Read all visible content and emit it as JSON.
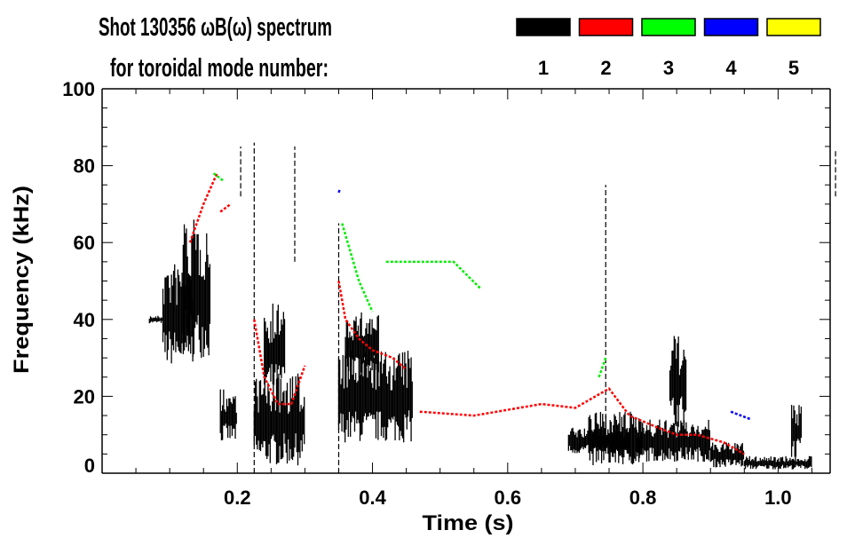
{
  "chart_data": {
    "type": "heatmap",
    "title": "Shot 130356 ωB(ω) spectrum",
    "subtitle": "for toroidal mode number:",
    "xlabel": "Time (s)",
    "ylabel": "Frequency (kHz)",
    "xlim": [
      0.0,
      1.077
    ],
    "ylim": [
      0,
      100
    ],
    "xticks": [
      "0.2",
      "0.4",
      "0.6",
      "0.8",
      "1.0"
    ],
    "xtick_values": [
      0.2,
      0.4,
      0.6,
      0.8,
      1.0
    ],
    "yticks": [
      "0",
      "20",
      "40",
      "60",
      "80",
      "100"
    ],
    "ytick_values": [
      0,
      20,
      40,
      60,
      80,
      100
    ],
    "legend": [
      {
        "mode": "1",
        "color": "#000000"
      },
      {
        "mode": "2",
        "color": "#ff0000"
      },
      {
        "mode": "3",
        "color": "#00ff00"
      },
      {
        "mode": "4",
        "color": "#0000ff"
      },
      {
        "mode": "5",
        "color": "#ffff00"
      }
    ],
    "mode1_regions": [
      {
        "t": [
          0.07,
          0.09
        ],
        "f": [
          39,
          41
        ]
      },
      {
        "t": [
          0.09,
          0.135
        ],
        "f": [
          28,
          55
        ]
      },
      {
        "t": [
          0.12,
          0.16
        ],
        "f": [
          30,
          66
        ]
      },
      {
        "t": [
          0.175,
          0.2
        ],
        "f": [
          8,
          22
        ]
      },
      {
        "t": [
          0.225,
          0.3
        ],
        "f": [
          2,
          26
        ]
      },
      {
        "t": [
          0.24,
          0.27
        ],
        "f": [
          20,
          45
        ]
      },
      {
        "t": [
          0.35,
          0.46
        ],
        "f": [
          8,
          32
        ]
      },
      {
        "t": [
          0.36,
          0.41
        ],
        "f": [
          25,
          42
        ]
      },
      {
        "t": [
          0.69,
          0.78
        ],
        "f": [
          5,
          12
        ]
      },
      {
        "t": [
          0.72,
          0.8
        ],
        "f": [
          2,
          16
        ]
      },
      {
        "t": [
          0.79,
          0.9
        ],
        "f": [
          3,
          14
        ]
      },
      {
        "t": [
          0.84,
          0.865
        ],
        "f": [
          12,
          36
        ]
      },
      {
        "t": [
          0.9,
          0.95
        ],
        "f": [
          1.5,
          8
        ]
      },
      {
        "t": [
          0.95,
          1.05
        ],
        "f": [
          1,
          4.5
        ]
      },
      {
        "t": [
          1.02,
          1.035
        ],
        "f": [
          4,
          19
        ]
      }
    ],
    "mode1_streaks": [
      {
        "t": 0.225,
        "f": [
          0,
          86
        ]
      },
      {
        "t": 0.745,
        "f": [
          12,
          75
        ]
      },
      {
        "t": 0.35,
        "f": [
          0,
          65
        ]
      },
      {
        "t": 0.205,
        "f": [
          72,
          85
        ]
      },
      {
        "t": 1.085,
        "f": [
          72,
          84
        ]
      },
      {
        "t": 0.285,
        "f": [
          55,
          85
        ]
      }
    ],
    "mode2_tracks": [
      [
        [
          0.13,
          60
        ],
        [
          0.15,
          70
        ],
        [
          0.17,
          78
        ]
      ],
      [
        [
          0.175,
          68
        ],
        [
          0.19,
          70
        ]
      ],
      [
        [
          0.225,
          40
        ],
        [
          0.24,
          25
        ],
        [
          0.26,
          18
        ],
        [
          0.28,
          18
        ],
        [
          0.3,
          28
        ]
      ],
      [
        [
          0.35,
          50
        ],
        [
          0.36,
          40
        ],
        [
          0.38,
          35
        ],
        [
          0.4,
          32
        ],
        [
          0.43,
          30
        ],
        [
          0.45,
          27
        ]
      ],
      [
        [
          0.47,
          16
        ],
        [
          0.55,
          15
        ],
        [
          0.65,
          18
        ],
        [
          0.7,
          17
        ],
        [
          0.75,
          22
        ],
        [
          0.78,
          15
        ],
        [
          0.82,
          12
        ],
        [
          0.85,
          10
        ],
        [
          0.88,
          10
        ],
        [
          0.92,
          8
        ],
        [
          0.95,
          5
        ]
      ]
    ],
    "mode3_tracks": [
      [
        [
          0.165,
          78
        ],
        [
          0.18,
          76
        ]
      ],
      [
        [
          0.355,
          65
        ],
        [
          0.38,
          50
        ],
        [
          0.4,
          42
        ]
      ],
      [
        [
          0.42,
          55
        ],
        [
          0.52,
          55
        ],
        [
          0.56,
          48
        ]
      ],
      [
        [
          0.735,
          25
        ],
        [
          0.745,
          30
        ]
      ]
    ],
    "mode4_tracks": [
      [
        [
          0.35,
          73
        ],
        [
          0.352,
          74
        ]
      ],
      [
        [
          0.93,
          16
        ],
        [
          0.96,
          14
        ]
      ]
    ],
    "mode5_tracks": []
  }
}
